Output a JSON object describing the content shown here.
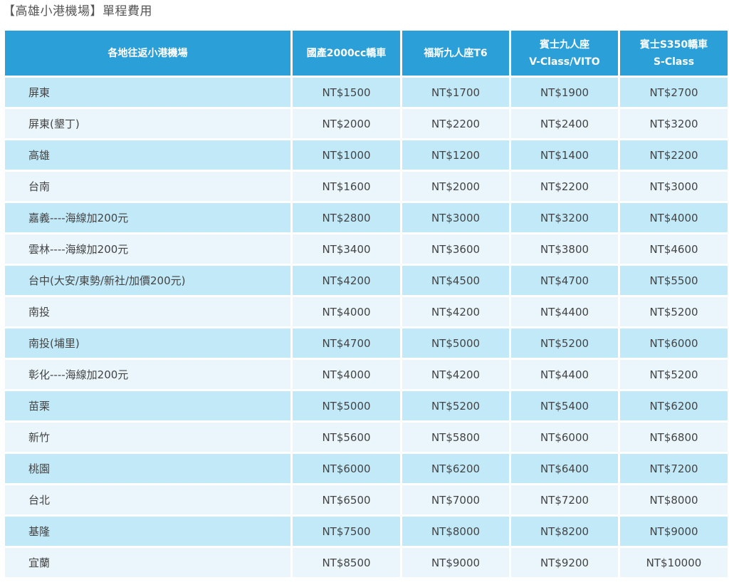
{
  "title": "【高雄小港機場】單程費用",
  "table": {
    "headers": [
      {
        "lines": [
          "各地往返小港機場"
        ]
      },
      {
        "lines": [
          "國產2000cc轎車"
        ]
      },
      {
        "lines": [
          "福斯九人座T6"
        ]
      },
      {
        "lines": [
          "賓士九人座",
          "V-Class/VITO"
        ]
      },
      {
        "lines": [
          "賓士S350轎車",
          "S-Class"
        ]
      }
    ],
    "rows": [
      {
        "location": "屏東",
        "prices": [
          "NT$1500",
          "NT$1700",
          "NT$1900",
          "NT$2700"
        ]
      },
      {
        "location": "屏東(墾丁)",
        "prices": [
          "NT$2000",
          "NT$2200",
          "NT$2400",
          "NT$3200"
        ]
      },
      {
        "location": "高雄",
        "prices": [
          "NT$1000",
          "NT$1200",
          "NT$1400",
          "NT$2200"
        ]
      },
      {
        "location": "台南",
        "prices": [
          "NT$1600",
          "NT$2000",
          "NT$2200",
          "NT$3000"
        ]
      },
      {
        "location": "嘉義----海線加200元",
        "prices": [
          "NT$2800",
          "NT$3000",
          "NT$3200",
          "NT$4000"
        ]
      },
      {
        "location": "雲林----海線加200元",
        "prices": [
          "NT$3400",
          "NT$3600",
          "NT$3800",
          "NT$4600"
        ]
      },
      {
        "location": "台中(大安/東勢/新社/加價200元)",
        "prices": [
          "NT$4200",
          "NT$4500",
          "NT$4700",
          "NT$5500"
        ]
      },
      {
        "location": "南投",
        "prices": [
          "NT$4000",
          "NT$4200",
          "NT$4400",
          "NT$5200"
        ]
      },
      {
        "location": "南投(埔里)",
        "prices": [
          "NT$4700",
          "NT$5000",
          "NT$5200",
          "NT$6000"
        ]
      },
      {
        "location": "彰化----海線加200元",
        "prices": [
          "NT$4000",
          "NT$4200",
          "NT$4400",
          "NT$5200"
        ]
      },
      {
        "location": "苗栗",
        "prices": [
          "NT$5000",
          "NT$5200",
          "NT$5400",
          "NT$6200"
        ]
      },
      {
        "location": "新竹",
        "prices": [
          "NT$5600",
          "NT$5800",
          "NT$6000",
          "NT$6800"
        ]
      },
      {
        "location": "桃園",
        "prices": [
          "NT$6000",
          "NT$6200",
          "NT$6400",
          "NT$7200"
        ]
      },
      {
        "location": "台北",
        "prices": [
          "NT$6500",
          "NT$7000",
          "NT$7200",
          "NT$8000"
        ]
      },
      {
        "location": "基隆",
        "prices": [
          "NT$7500",
          "NT$8000",
          "NT$8200",
          "NT$9000"
        ]
      },
      {
        "location": "宜蘭",
        "prices": [
          "NT$8500",
          "NT$9000",
          "NT$9200",
          "NT$10000"
        ]
      }
    ]
  },
  "colors": {
    "header_bg": "#2a9fd8",
    "row_odd_bg": "#c2e9f8",
    "row_even_bg": "#eaf6fb",
    "title_text": "#555555"
  }
}
